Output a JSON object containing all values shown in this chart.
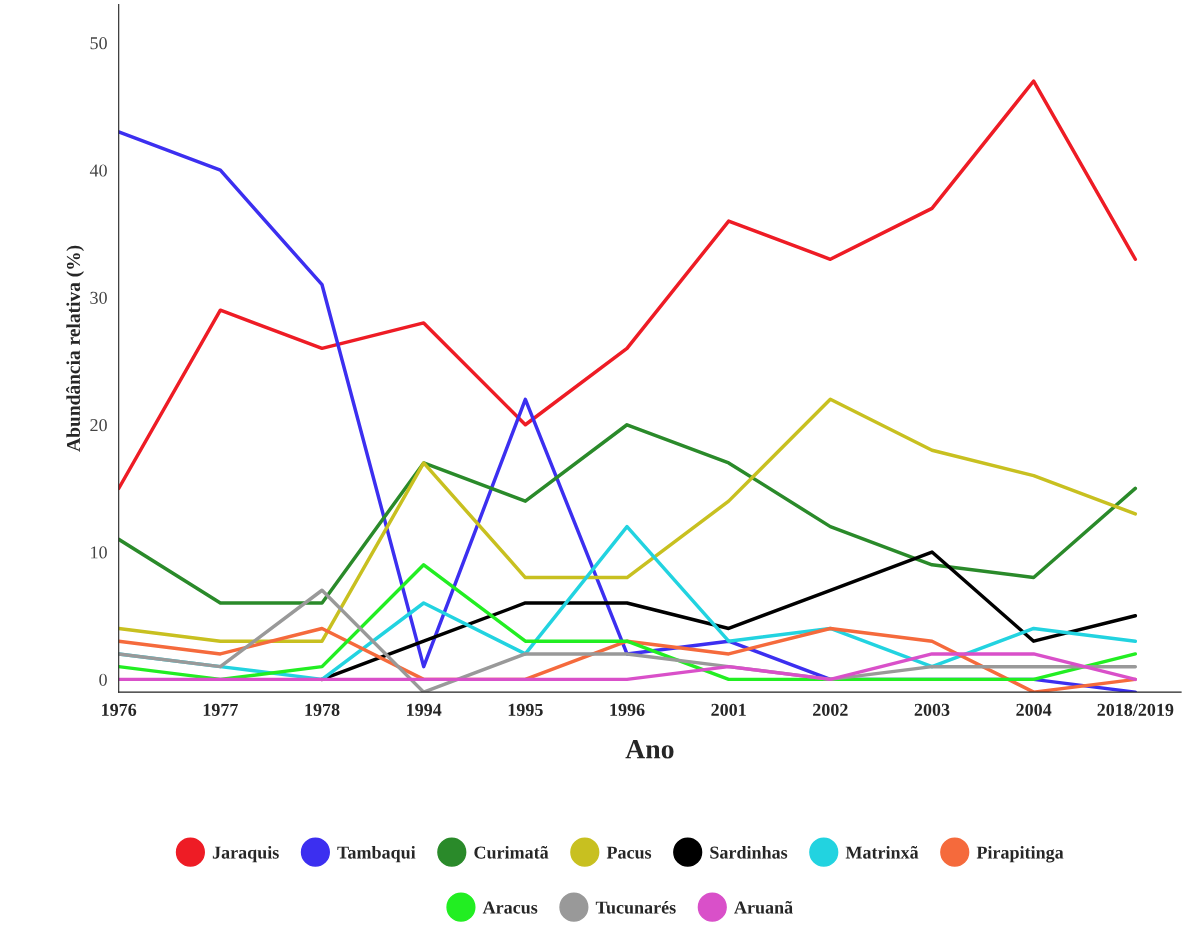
{
  "chart_data": {
    "type": "line",
    "xlabel": "Ano",
    "ylabel": "Abundância relativa (%)",
    "categories": [
      "1976",
      "1977",
      "1978",
      "1994",
      "1995",
      "1996",
      "2001",
      "2002",
      "2003",
      "2004",
      "2018/2019"
    ],
    "ylim": [
      -1,
      53
    ],
    "yticks": [
      0,
      10,
      20,
      30,
      40,
      50
    ],
    "grid": false,
    "legend": "bottom",
    "marker": "none",
    "series": [
      {
        "name": "Jaraquis",
        "color": "#ee1c25",
        "values": [
          15,
          29,
          26,
          28,
          20,
          26,
          36,
          33,
          37,
          47,
          33
        ]
      },
      {
        "name": "Tambaqui",
        "color": "#3c2ff0",
        "values": [
          43,
          40,
          31,
          1,
          22,
          2,
          3,
          0,
          0,
          0,
          -1
        ]
      },
      {
        "name": "Curimatã",
        "color": "#2a8a2a",
        "values": [
          11,
          6,
          6,
          17,
          14,
          20,
          17,
          12,
          9,
          8,
          15
        ]
      },
      {
        "name": "Pacus",
        "color": "#c8c020",
        "values": [
          4,
          3,
          3,
          17,
          8,
          8,
          14,
          22,
          18,
          16,
          13
        ]
      },
      {
        "name": "Sardinhas",
        "color": "#000000",
        "values": [
          null,
          null,
          0,
          3,
          6,
          6,
          4,
          7,
          10,
          3,
          5
        ]
      },
      {
        "name": "Matrinxã",
        "color": "#22d3e0",
        "values": [
          2,
          1,
          0,
          6,
          2,
          12,
          3,
          4,
          1,
          4,
          3
        ]
      },
      {
        "name": "Pirapitinga",
        "color": "#f56a3c",
        "values": [
          3,
          2,
          4,
          0,
          0,
          3,
          2,
          4,
          3,
          -1,
          0
        ]
      },
      {
        "name": "Aracus",
        "color": "#22ee22",
        "values": [
          1,
          0,
          1,
          9,
          3,
          3,
          0,
          0,
          0,
          0,
          2
        ]
      },
      {
        "name": "Tucunarés",
        "color": "#999999",
        "values": [
          2,
          1,
          7,
          -1,
          2,
          2,
          1,
          0,
          1,
          1,
          1
        ]
      },
      {
        "name": "Aruanã",
        "color": "#d950c9",
        "values": [
          0,
          0,
          0,
          0,
          0,
          0,
          1,
          0,
          2,
          2,
          0
        ]
      }
    ]
  }
}
